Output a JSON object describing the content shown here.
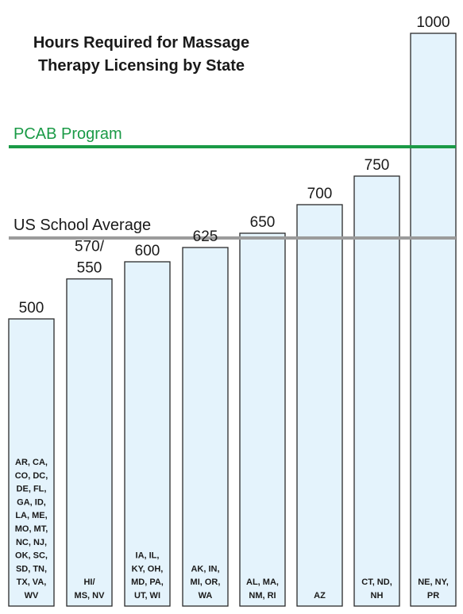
{
  "chart_data": {
    "type": "bar",
    "title_lines": [
      "Hours Required for Massage",
      "Therapy Licensing by State"
    ],
    "categories": [
      [
        "AR, CA,",
        "CO, DC,",
        "DE, FL,",
        "GA, ID,",
        "LA, ME,",
        "MO, MT,",
        "NC, NJ,",
        "OK, SC,",
        "SD, TN,",
        "TX, VA,",
        "WV"
      ],
      [
        "HI/",
        "MS, NV"
      ],
      [
        "IA, IL,",
        "KY, OH,",
        "MD, PA,",
        "UT, WI"
      ],
      [
        "AK, IN,",
        "MI, OR,",
        "WA"
      ],
      [
        "AL, MA,",
        "NM, RI"
      ],
      [
        "AZ"
      ],
      [
        "CT, ND,",
        "NH"
      ],
      [
        "NE, NY,",
        "PR"
      ]
    ],
    "values": [
      500,
      570,
      600,
      625,
      650,
      700,
      750,
      1000
    ],
    "value_labels": [
      [
        "500"
      ],
      [
        "570/",
        "550"
      ],
      [
        "600"
      ],
      [
        "625"
      ],
      [
        "650"
      ],
      [
        "700"
      ],
      [
        "750"
      ],
      [
        "1000"
      ]
    ],
    "reference_lines": [
      {
        "label": "PCAB Program",
        "value": 900,
        "color": "#1a9a46"
      },
      {
        "label": "US School Average",
        "value": 675,
        "color": "#9b9b9b"
      }
    ],
    "ylim": [
      0,
      1000
    ],
    "xlabel": "",
    "ylabel": "",
    "grid": false,
    "bar_fill": "#e4f3fc",
    "bar_stroke": "#2a2a2a"
  }
}
